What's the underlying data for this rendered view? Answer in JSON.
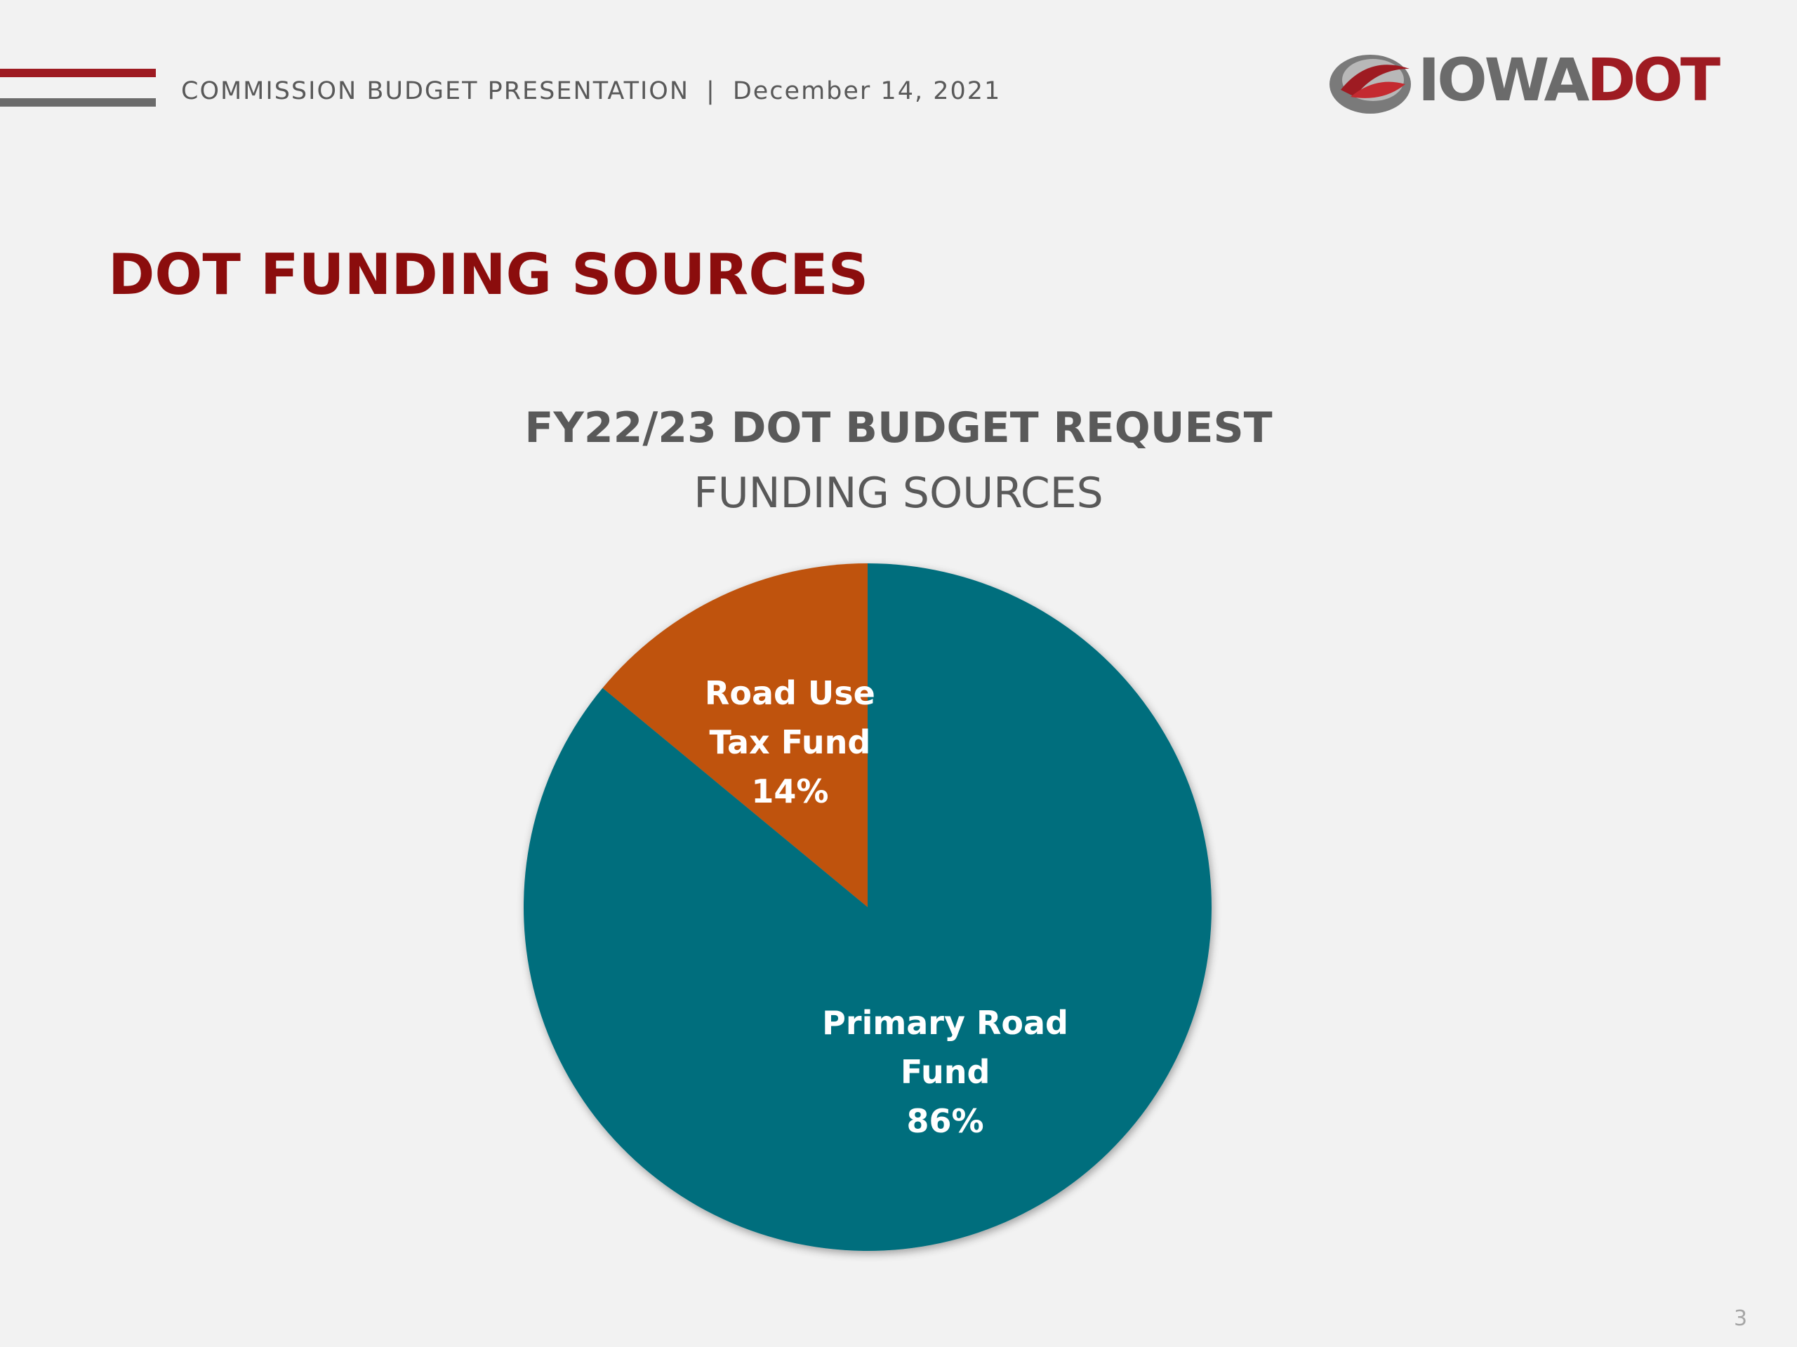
{
  "header": {
    "presentation": "COMMISSION BUDGET PRESENTATION",
    "separator": "|",
    "date": "December 14, 2021",
    "rule_colors": [
      "#9e1b22",
      "#6b6b6b"
    ]
  },
  "logo": {
    "word_iowa": "IOWA",
    "word_dot": "DOT",
    "icon": "iowa-dot-swoosh-icon",
    "colors": {
      "red": "#9e1b22",
      "gray": "#6b6b6b"
    }
  },
  "slide": {
    "title": "DOT FUNDING SOURCES",
    "page_number": "3"
  },
  "chart_data": {
    "type": "pie",
    "title": "FY22/23 DOT BUDGET REQUEST",
    "subtitle": "FUNDING SOURCES",
    "slices": [
      {
        "label_lines": [
          "Road Use",
          "Tax Fund",
          "14%"
        ],
        "value": 14,
        "color": "#bf530d"
      },
      {
        "label_lines": [
          "Primary Road",
          "Fund",
          "86%"
        ],
        "value": 86,
        "color": "#006e7d"
      }
    ],
    "start_angle_deg": -50.4,
    "direction": "clockwise"
  }
}
